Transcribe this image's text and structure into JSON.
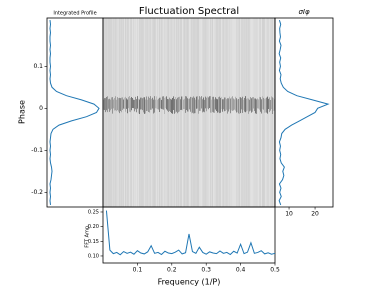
{
  "chart_data": [
    {
      "type": "line",
      "orientation": "horizontal",
      "title": "Integrated Profile",
      "ylabel": "Phase",
      "y": [
        -0.23,
        -0.22,
        -0.21,
        -0.2,
        -0.19,
        -0.18,
        -0.17,
        -0.16,
        -0.15,
        -0.14,
        -0.13,
        -0.12,
        -0.11,
        -0.1,
        -0.09,
        -0.08,
        -0.07,
        -0.06,
        -0.05,
        -0.04,
        -0.03,
        -0.02,
        -0.01,
        0,
        0.01,
        0.02,
        0.03,
        0.04,
        0.05,
        0.06,
        0.07,
        0.08,
        0.09,
        0.1,
        0.11,
        0.12,
        0.13,
        0.14,
        0.15,
        0.16,
        0.17,
        0.18,
        0.19,
        0.2,
        0.21
      ],
      "values": [
        0.03,
        0.02,
        0.03,
        0.02,
        0.03,
        0.02,
        0.04,
        0.05,
        0.06,
        0.05,
        0.03,
        0.02,
        0.03,
        0.02,
        0.03,
        0.02,
        0.03,
        0.04,
        0.08,
        0.2,
        0.45,
        0.75,
        0.95,
        1.0,
        0.9,
        0.65,
        0.35,
        0.15,
        0.06,
        0.03,
        0.02,
        0.03,
        0.02,
        0.03,
        0.02,
        0.02,
        0.03,
        0.02,
        0.03,
        0.02,
        0.02,
        0.03,
        0.02,
        0.03,
        0.02
      ],
      "color": "#1f77b4",
      "xlim": [
        -0.04,
        1.08
      ],
      "ylim": [
        -0.235,
        0.215
      ],
      "yticks": [
        -0.2,
        -0.1,
        0,
        0.1
      ]
    },
    {
      "type": "image",
      "title": "Fluctuation Spectral"
    },
    {
      "type": "line",
      "orientation": "horizontal",
      "title": "σIφ",
      "y": [
        -0.23,
        -0.22,
        -0.21,
        -0.2,
        -0.19,
        -0.18,
        -0.17,
        -0.16,
        -0.15,
        -0.14,
        -0.13,
        -0.12,
        -0.11,
        -0.1,
        -0.09,
        -0.08,
        -0.07,
        -0.06,
        -0.05,
        -0.04,
        -0.03,
        -0.02,
        -0.01,
        0,
        0.01,
        0.02,
        0.03,
        0.04,
        0.05,
        0.06,
        0.07,
        0.08,
        0.09,
        0.1,
        0.11,
        0.12,
        0.13,
        0.14,
        0.15,
        0.16,
        0.17,
        0.18,
        0.19,
        0.2,
        0.21
      ],
      "values": [
        6.8,
        6.2,
        7.0,
        6.4,
        6.9,
        6.3,
        7.5,
        8.0,
        7.6,
        8.2,
        7.0,
        6.5,
        6.8,
        6.4,
        6.7,
        6.3,
        6.9,
        7.2,
        8.5,
        11,
        14,
        17,
        20,
        21,
        25,
        19,
        13,
        9.5,
        7.8,
        7.0,
        6.6,
        6.9,
        6.3,
        6.7,
        6.4,
        6.8,
        6.2,
        6.6,
        6.9,
        6.3,
        6.7,
        6.5,
        6.4,
        6.8,
        6.3
      ],
      "color": "#1f77b4",
      "xlim": [
        4.6,
        26.9
      ],
      "ylim": [
        -0.235,
        0.215
      ],
      "xticks": [
        10,
        20
      ]
    },
    {
      "type": "line",
      "orientation": "vertical",
      "xlabel": "Frequency (1/P)",
      "ylabel": "FFT Amp.",
      "x": [
        0.01,
        0.02,
        0.03,
        0.04,
        0.05,
        0.06,
        0.07,
        0.08,
        0.09,
        0.1,
        0.11,
        0.12,
        0.13,
        0.14,
        0.15,
        0.16,
        0.17,
        0.18,
        0.19,
        0.2,
        0.21,
        0.22,
        0.23,
        0.24,
        0.25,
        0.26,
        0.27,
        0.28,
        0.29,
        0.3,
        0.31,
        0.32,
        0.33,
        0.34,
        0.35,
        0.36,
        0.37,
        0.38,
        0.39,
        0.4,
        0.41,
        0.42,
        0.43,
        0.44,
        0.45,
        0.46,
        0.47,
        0.48,
        0.49,
        0.5
      ],
      "values": [
        0.255,
        0.12,
        0.108,
        0.112,
        0.104,
        0.115,
        0.109,
        0.113,
        0.106,
        0.118,
        0.11,
        0.107,
        0.114,
        0.135,
        0.109,
        0.112,
        0.105,
        0.116,
        0.11,
        0.108,
        0.113,
        0.12,
        0.107,
        0.111,
        0.175,
        0.115,
        0.109,
        0.13,
        0.112,
        0.106,
        0.114,
        0.11,
        0.108,
        0.117,
        0.109,
        0.112,
        0.105,
        0.116,
        0.11,
        0.14,
        0.108,
        0.113,
        0.145,
        0.109,
        0.112,
        0.118,
        0.107,
        0.111,
        0.106,
        0.109
      ],
      "color": "#1f77b4",
      "xlim": [
        0,
        0.5
      ],
      "ylim": [
        0.076,
        0.267
      ],
      "xticks": [
        0.1,
        0.2,
        0.3,
        0.4,
        0.5
      ],
      "yticks": [
        {
          "value": 0.1,
          "label": "0.10"
        },
        {
          "value": 0.15,
          "label": "0.15"
        },
        {
          "value": 0.2,
          "label": "0.20"
        },
        {
          "value": 0.25,
          "label": "0.25"
        }
      ]
    }
  ]
}
